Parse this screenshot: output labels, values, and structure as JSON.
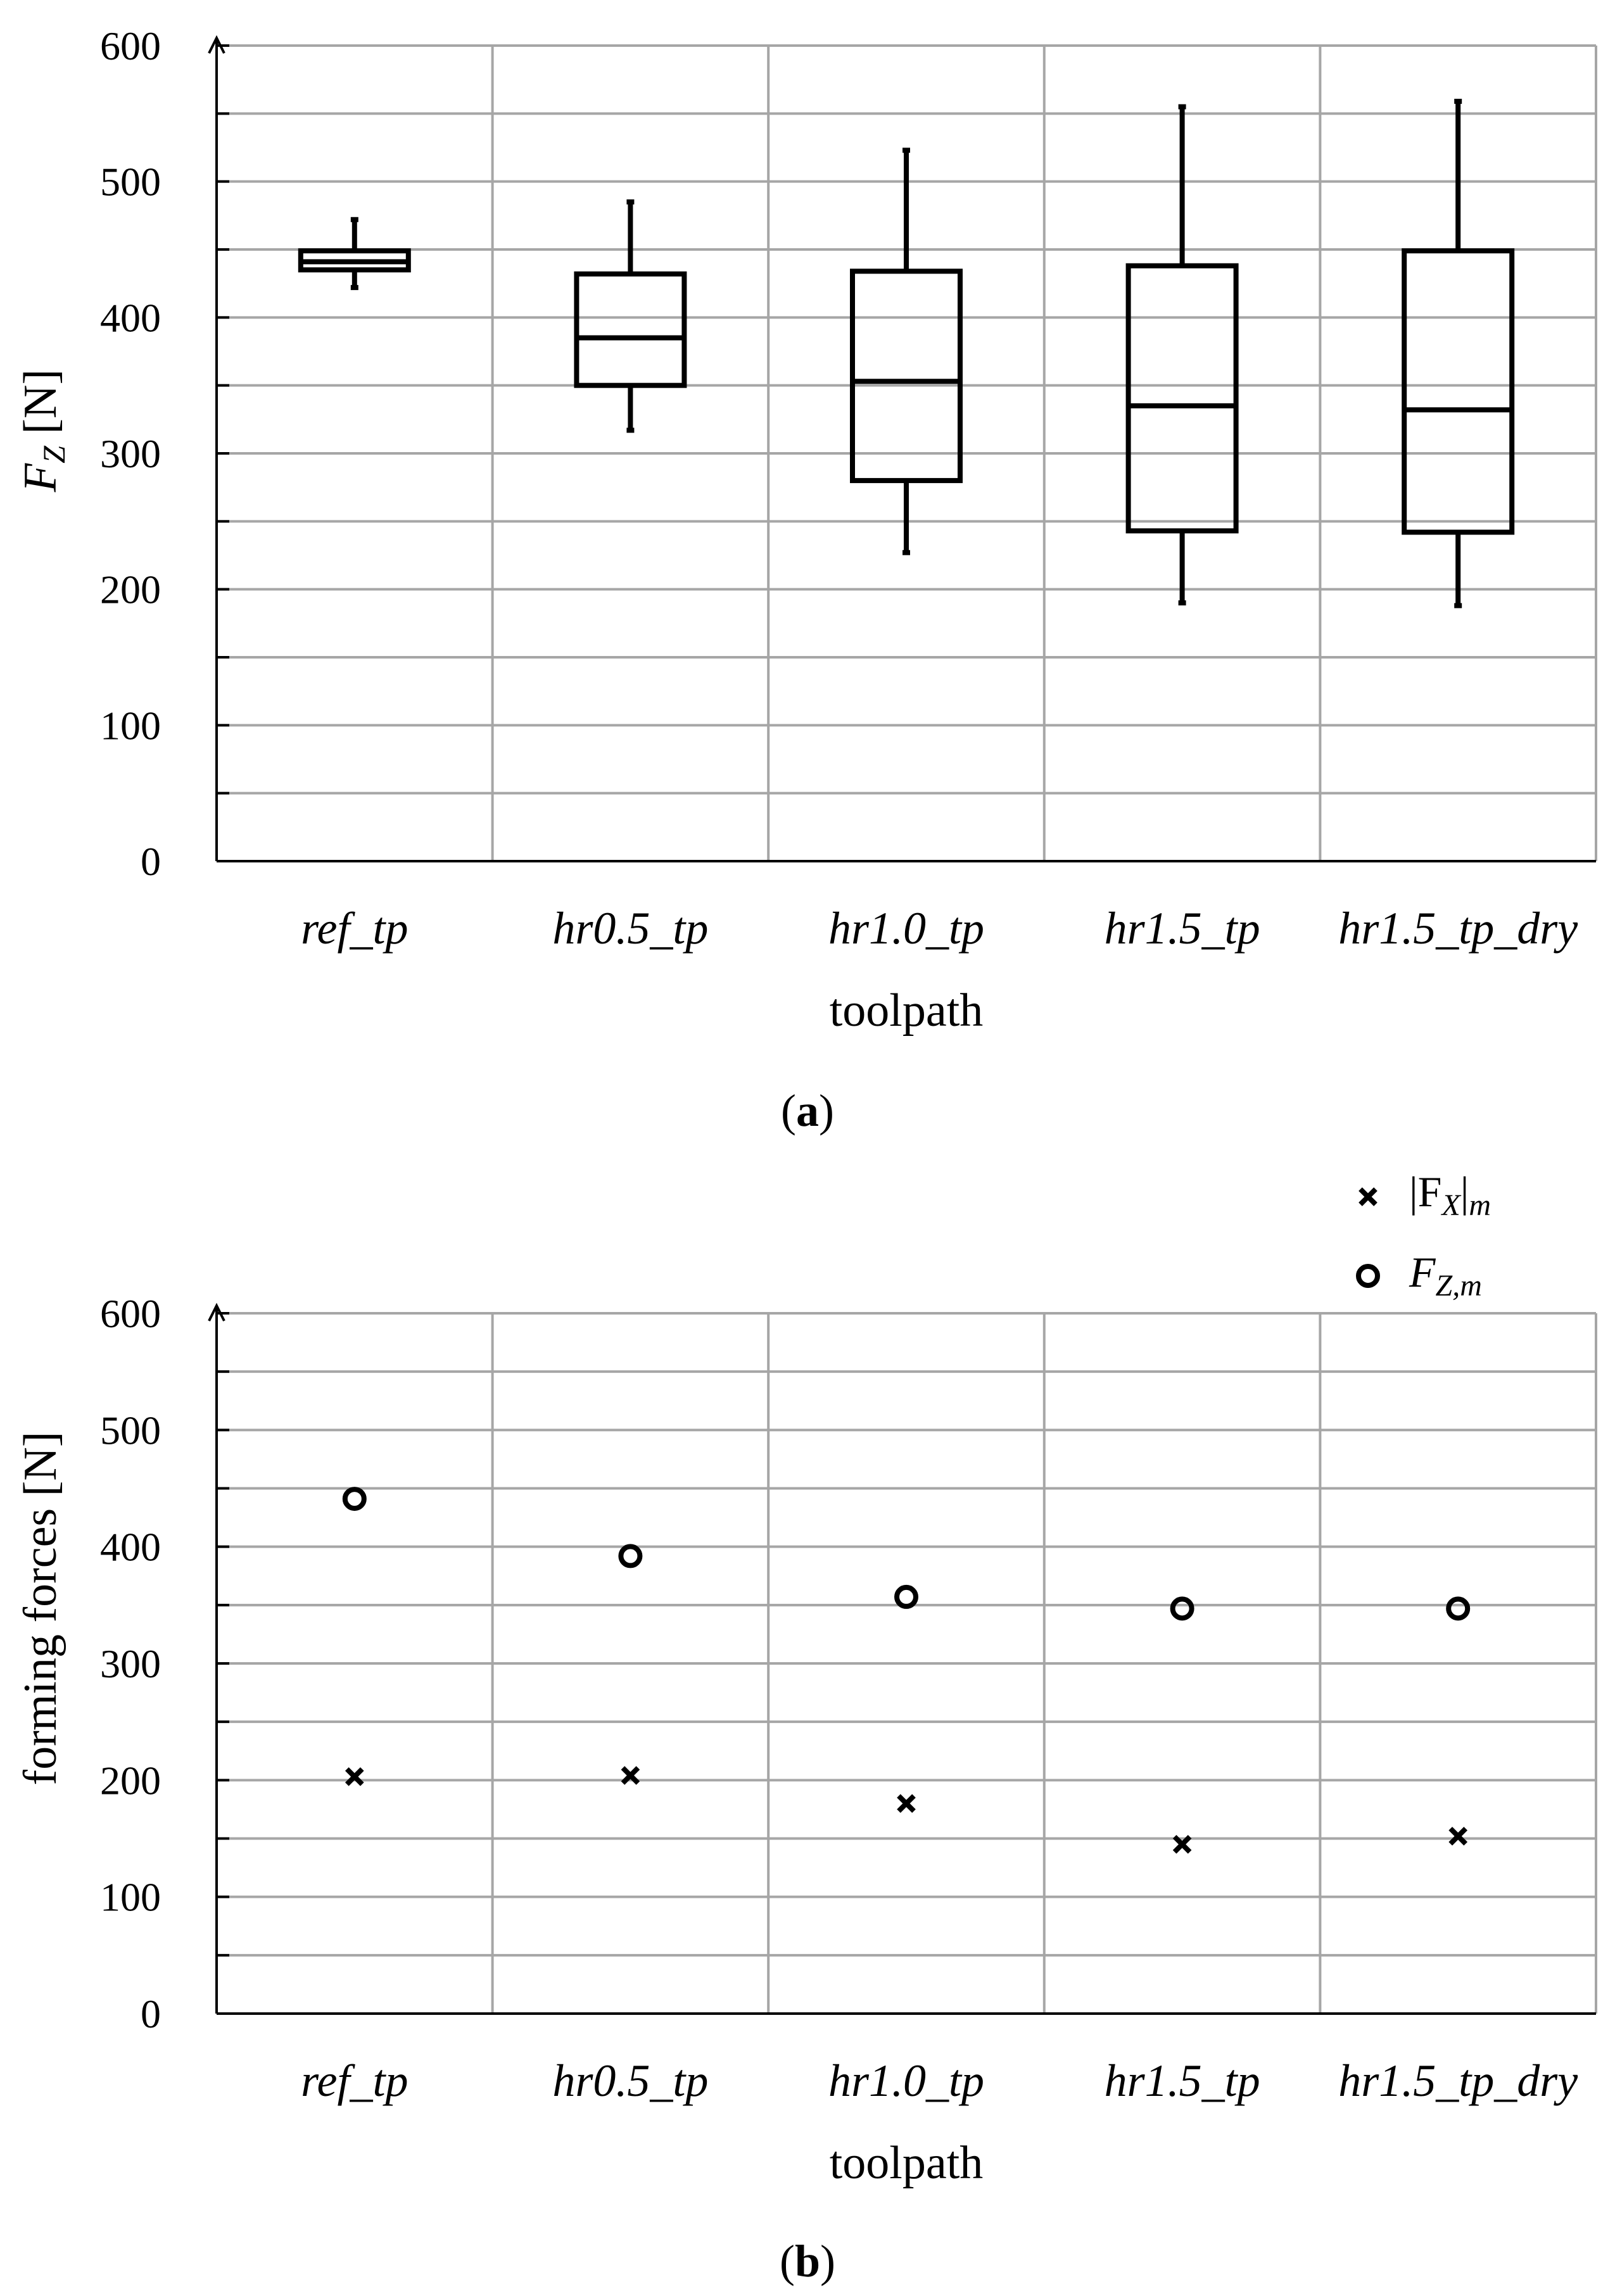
{
  "chart_data": [
    {
      "panel": "a",
      "type": "boxplot",
      "caption_letter": "a",
      "xlabel": "toolpath",
      "ylabel_main": "F",
      "ylabel_sub": "Z",
      "ylabel_unit": " [N]",
      "ylim": [
        0,
        600
      ],
      "yticks": [
        "0",
        "100",
        "200",
        "300",
        "400",
        "500",
        "600"
      ],
      "grid": true,
      "categories": [
        "ref_tp",
        "hr0.5_tp",
        "hr1.0_tp",
        "hr1.5_tp",
        "hr1.5_tp_dry"
      ],
      "boxes": [
        {
          "min": 422,
          "q1": 435,
          "median": 441,
          "q3": 449,
          "max": 472
        },
        {
          "min": 317,
          "q1": 350,
          "median": 385,
          "q3": 432,
          "max": 485
        },
        {
          "min": 227,
          "q1": 280,
          "median": 353,
          "q3": 434,
          "max": 523
        },
        {
          "min": 190,
          "q1": 243,
          "median": 335,
          "q3": 438,
          "max": 555
        },
        {
          "min": 188,
          "q1": 242,
          "median": 332,
          "q3": 449,
          "max": 559
        }
      ]
    },
    {
      "panel": "b",
      "type": "scatter",
      "caption_letter": "b",
      "xlabel": "toolpath",
      "ylabel": "forming forces [N]",
      "ylim": [
        0,
        600
      ],
      "yticks": [
        "0",
        "100",
        "200",
        "300",
        "400",
        "500",
        "600"
      ],
      "grid": true,
      "legend_position": "top-right, above plot",
      "categories": [
        "ref_tp",
        "hr0.5_tp",
        "hr1.0_tp",
        "hr1.5_tp",
        "hr1.5_tp_dry"
      ],
      "series": [
        {
          "name": "|F_X|_m",
          "legend_main": "|F",
          "legend_sub": "X",
          "legend_tail": "|",
          "legend_tail_sub": "m",
          "marker": "x",
          "values": [
            203,
            204,
            180,
            145,
            152
          ]
        },
        {
          "name": "F_Z,m",
          "legend_main": "F",
          "legend_sub": "Z,m",
          "marker": "circle",
          "values": [
            441,
            392,
            357,
            347,
            347
          ]
        }
      ]
    }
  ]
}
